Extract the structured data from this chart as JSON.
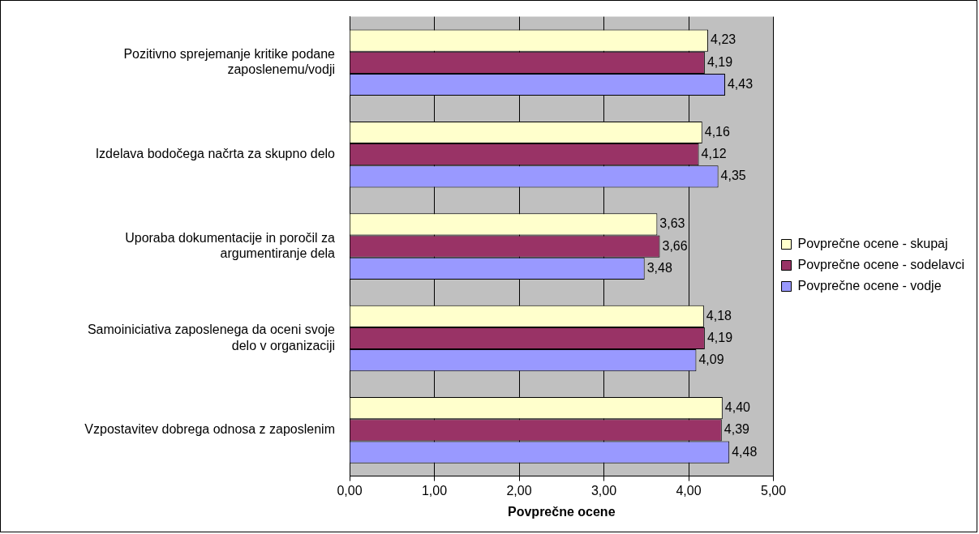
{
  "chart_data": {
    "type": "bar",
    "orientation": "horizontal",
    "xlabel": "Povprečne ocene",
    "categories": [
      "Pozitivno sprejemanje kritike podane zaposlenemu/vodji",
      "Izdelava bodočega načrta za skupno delo",
      "Uporaba dokumentacije in poročil za argumentiranje dela",
      "Samoiniciativa zaposlenega da oceni svoje delo v organizaciji",
      "Vzpostavitev dobrega odnosa z zaposlenim"
    ],
    "series": [
      {
        "name": "Povprečne ocene - skupaj",
        "color": "#ffffcc",
        "values": [
          4.23,
          4.16,
          3.63,
          4.18,
          4.4
        ],
        "value_labels": [
          "4,23",
          "4,16",
          "3,63",
          "4,18",
          "4,40"
        ]
      },
      {
        "name": "Povprečne ocene - sodelavci",
        "color": "#993366",
        "values": [
          4.19,
          4.12,
          3.66,
          4.19,
          4.39
        ],
        "value_labels": [
          "4,19",
          "4,12",
          "3,66",
          "4,19",
          "4,39"
        ]
      },
      {
        "name": "Povprečne ocene - vodje",
        "color": "#9999ff",
        "values": [
          4.43,
          4.35,
          3.48,
          4.09,
          4.48
        ],
        "value_labels": [
          "4,43",
          "4,35",
          "3,48",
          "4,09",
          "4,48"
        ]
      }
    ],
    "xlim": [
      0,
      5
    ],
    "xticks": [
      {
        "value": 0,
        "label": "0,00"
      },
      {
        "value": 1,
        "label": "1,00"
      },
      {
        "value": 2,
        "label": "2,00"
      },
      {
        "value": 3,
        "label": "3,00"
      },
      {
        "value": 4,
        "label": "4,00"
      },
      {
        "value": 5,
        "label": "5,00"
      }
    ],
    "grid": "x",
    "legend": "right"
  }
}
